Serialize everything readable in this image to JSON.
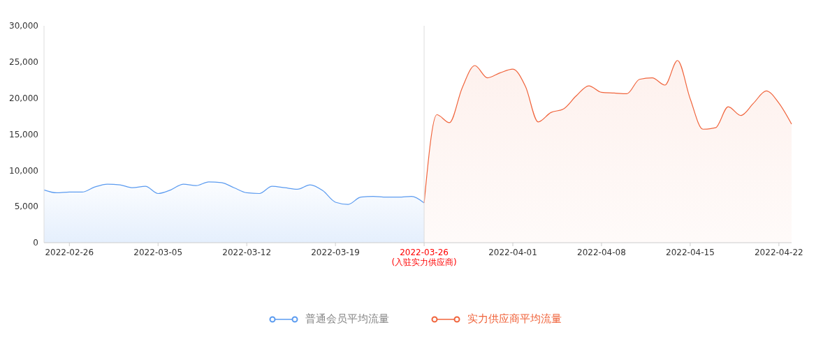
{
  "chart_data": {
    "type": "area",
    "categories": [
      null,
      null,
      "2022-02-26",
      null,
      null,
      null,
      null,
      null,
      null,
      "2022-03-05",
      null,
      null,
      null,
      null,
      null,
      null,
      "2022-03-12",
      null,
      null,
      null,
      null,
      null,
      null,
      "2022-03-19",
      null,
      null,
      null,
      null,
      null,
      null,
      "2022-03-26",
      null,
      null,
      null,
      null,
      null,
      null,
      "2022-04-01",
      null,
      null,
      null,
      null,
      null,
      null,
      "2022-04-08",
      null,
      null,
      null,
      null,
      null,
      null,
      "2022-04-15",
      null,
      null,
      null,
      null,
      null,
      null,
      "2022-04-22",
      null
    ],
    "series": [
      {
        "name": "普通会员平均流量",
        "color": "#5b9bf0",
        "values": [
          7300,
          6900,
          7000,
          7000,
          7700,
          8100,
          8000,
          7600,
          7800,
          6800,
          7300,
          8100,
          7900,
          8400,
          8300,
          7600,
          6900,
          6800,
          7800,
          7600,
          7400,
          8000,
          7200,
          5600,
          5300,
          6300,
          6400,
          6300,
          6300,
          6400,
          5500,
          null,
          null,
          null,
          null,
          null,
          null,
          null,
          null,
          null,
          null,
          null,
          null,
          null,
          null,
          null,
          null,
          null,
          null,
          null,
          null,
          null,
          null,
          null,
          null,
          null,
          null,
          null,
          null,
          null
        ]
      },
      {
        "name": "实力供应商平均流量",
        "color": "#f0643c",
        "values": [
          null,
          null,
          null,
          null,
          null,
          null,
          null,
          null,
          null,
          null,
          null,
          null,
          null,
          null,
          null,
          null,
          null,
          null,
          null,
          null,
          null,
          null,
          null,
          null,
          null,
          null,
          null,
          null,
          null,
          null,
          5500,
          17700,
          16600,
          21400,
          24500,
          22800,
          23500,
          24000,
          21600,
          16700,
          18000,
          18500,
          20300,
          21700,
          20800,
          20700,
          20600,
          22600,
          22800,
          21800,
          25200,
          19900,
          15700,
          15900,
          18800,
          17600,
          19300,
          21000,
          19300,
          16400
        ]
      }
    ],
    "ylim": [
      0,
      30000
    ],
    "yticks": [
      0,
      {
        "value": 5000,
        "label": "5,000"
      },
      {
        "value": 10000,
        "label": "10,000"
      },
      {
        "value": 15000,
        "label": "15,000"
      },
      {
        "value": 20000,
        "label": "20,000"
      },
      {
        "value": 25000,
        "label": "25,000"
      },
      {
        "value": 30000,
        "label": "30,000"
      }
    ],
    "ref_lines": [
      {
        "axis": "x",
        "value": "2022-03-26",
        "color": "#dddddd"
      }
    ],
    "annotations": [
      "(入驻实力供应商)"
    ],
    "legend": "bottom",
    "marker": "none"
  }
}
